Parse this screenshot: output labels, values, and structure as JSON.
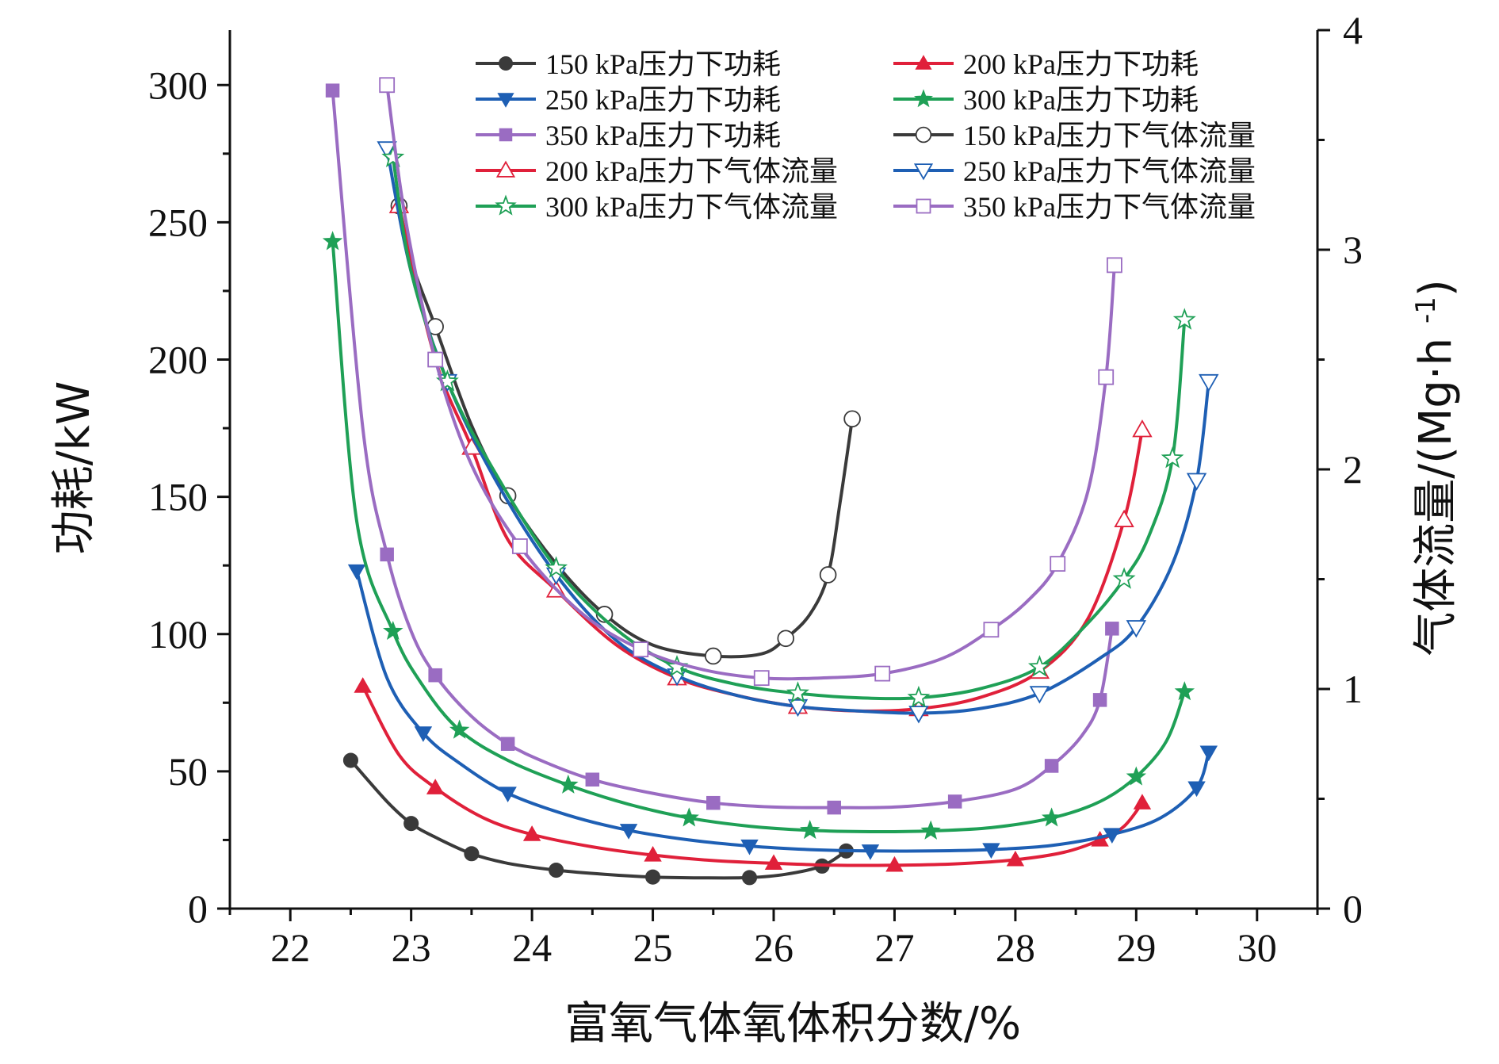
{
  "chart_data": {
    "type": "line",
    "xlabel": "富氧气体氧体积分数/%",
    "ylabel": "功耗/kW",
    "y2label": "气体流量/(Mg·h-1)",
    "xlim": [
      21.5,
      30.5
    ],
    "ylim": [
      0,
      320
    ],
    "y2lim": [
      0,
      4
    ],
    "xticks": [
      22,
      23,
      24,
      25,
      26,
      27,
      28,
      29,
      30
    ],
    "yticks": [
      0,
      50,
      100,
      150,
      200,
      250,
      300
    ],
    "y2ticks": [
      0,
      1,
      2,
      3,
      4
    ],
    "legend_position": "top-right",
    "series": [
      {
        "name": "150 kPa压力下功耗",
        "axis": "left",
        "color": "#3a3a3a",
        "marker": "circle",
        "filled": true,
        "x": [
          22.5,
          22.8,
          23.0,
          23.2,
          23.5,
          23.8,
          24.2,
          24.6,
          25.0,
          25.4,
          25.8,
          26.1,
          26.4,
          26.6
        ],
        "y": [
          54,
          39,
          31,
          26,
          20,
          16.5,
          14,
          12.5,
          11.5,
          11.2,
          11.3,
          12.5,
          15.5,
          21
        ]
      },
      {
        "name": "200 kPa压力下功耗",
        "axis": "left",
        "color": "#e0203a",
        "marker": "triangle-up",
        "filled": true,
        "x": [
          22.6,
          22.9,
          23.2,
          23.6,
          24.0,
          24.5,
          25.0,
          25.5,
          26.0,
          26.5,
          27.0,
          27.5,
          28.0,
          28.4,
          28.7,
          28.9,
          29.05
        ],
        "y": [
          81,
          56,
          44,
          33,
          27,
          22.5,
          19.5,
          17.5,
          16.5,
          15.8,
          15.8,
          16.3,
          17.8,
          20.5,
          25,
          30,
          38.5
        ]
      },
      {
        "name": "250 kPa压力下功耗",
        "axis": "left",
        "color": "#1e5fb4",
        "marker": "triangle-down",
        "filled": true,
        "x": [
          22.55,
          22.8,
          23.1,
          23.4,
          23.8,
          24.3,
          24.8,
          25.3,
          25.8,
          26.3,
          26.8,
          27.3,
          27.8,
          28.3,
          28.8,
          29.2,
          29.5,
          29.6
        ],
        "y": [
          123,
          84,
          64,
          53,
          42,
          34,
          28.5,
          25,
          22.8,
          21.5,
          21,
          21,
          21.5,
          23,
          27,
          33,
          44,
          57
        ]
      },
      {
        "name": "300 kPa压力下功耗",
        "axis": "left",
        "color": "#1fa056",
        "marker": "star",
        "filled": true,
        "x": [
          22.35,
          22.55,
          22.85,
          23.1,
          23.4,
          23.8,
          24.3,
          24.8,
          25.3,
          25.8,
          26.3,
          26.8,
          27.3,
          27.8,
          28.3,
          28.7,
          29.0,
          29.25,
          29.4
        ],
        "y": [
          243,
          141,
          101,
          81,
          65,
          54,
          45,
          38,
          33,
          30,
          28.5,
          28,
          28.3,
          29.5,
          33,
          39,
          48,
          61,
          79
        ]
      },
      {
        "name": "350 kPa压力下功耗",
        "axis": "left",
        "color": "#9a6cc2",
        "marker": "square",
        "filled": true,
        "x": [
          22.35,
          22.6,
          22.8,
          23.0,
          23.2,
          23.5,
          23.8,
          24.1,
          24.5,
          25.0,
          25.5,
          26.0,
          26.5,
          27.0,
          27.5,
          28.0,
          28.3,
          28.55,
          28.7,
          28.8
        ],
        "y": [
          298,
          175,
          129,
          101,
          85,
          70,
          60,
          53.5,
          47,
          42,
          38.5,
          37,
          36.8,
          37,
          39,
          43.5,
          52,
          63,
          76,
          102
        ]
      },
      {
        "name": "150 kPa压力下气体流量",
        "axis": "right",
        "color": "#3a3a3a",
        "marker": "circle",
        "filled": false,
        "x": [
          22.9,
          23.0,
          23.2,
          23.5,
          23.8,
          24.2,
          24.6,
          25.0,
          25.5,
          25.9,
          26.1,
          26.3,
          26.45,
          26.55,
          26.65
        ],
        "y": [
          3.2,
          2.95,
          2.65,
          2.2,
          1.88,
          1.57,
          1.34,
          1.2,
          1.15,
          1.16,
          1.23,
          1.34,
          1.52,
          1.85,
          2.23
        ]
      },
      {
        "name": "200 kPa压力下气体流量",
        "axis": "right",
        "color": "#e0203a",
        "marker": "triangle-up",
        "filled": false,
        "x": [
          22.9,
          23.2,
          23.5,
          23.8,
          24.2,
          24.7,
          25.2,
          25.7,
          26.2,
          26.7,
          27.2,
          27.7,
          28.2,
          28.6,
          28.9,
          29.05
        ],
        "y": [
          3.2,
          2.5,
          2.1,
          1.68,
          1.45,
          1.2,
          1.05,
          0.97,
          0.92,
          0.9,
          0.91,
          0.96,
          1.08,
          1.32,
          1.77,
          2.18
        ]
      },
      {
        "name": "250 kPa压力下气体流量",
        "axis": "right",
        "color": "#1e5fb4",
        "marker": "triangle-down",
        "filled": false,
        "x": [
          22.8,
          23.0,
          23.3,
          23.7,
          24.2,
          24.7,
          25.2,
          25.7,
          26.2,
          26.7,
          27.2,
          27.7,
          28.2,
          28.7,
          29.0,
          29.3,
          29.5,
          29.6
        ],
        "y": [
          3.46,
          2.9,
          2.4,
          1.95,
          1.52,
          1.22,
          1.06,
          0.97,
          0.92,
          0.9,
          0.89,
          0.91,
          0.98,
          1.14,
          1.28,
          1.57,
          1.95,
          2.4
        ]
      },
      {
        "name": "300 kPa压力下气体流量",
        "axis": "right",
        "color": "#1fa056",
        "marker": "star",
        "filled": false,
        "x": [
          22.85,
          23.0,
          23.3,
          23.7,
          24.2,
          24.7,
          25.2,
          25.7,
          26.2,
          26.7,
          27.2,
          27.7,
          28.2,
          28.6,
          28.9,
          29.1,
          29.3,
          29.4
        ],
        "y": [
          3.42,
          2.9,
          2.4,
          1.98,
          1.55,
          1.27,
          1.1,
          1.02,
          0.98,
          0.96,
          0.96,
          1.0,
          1.1,
          1.3,
          1.5,
          1.69,
          2.05,
          2.68
        ]
      },
      {
        "name": "350 kPa压力下气体流量",
        "axis": "right",
        "color": "#9a6cc2",
        "marker": "square",
        "filled": false,
        "x": [
          22.8,
          22.95,
          23.2,
          23.5,
          23.9,
          24.4,
          24.9,
          25.4,
          25.9,
          26.4,
          26.9,
          27.4,
          27.8,
          28.1,
          28.35,
          28.6,
          28.75,
          28.82
        ],
        "y": [
          3.75,
          3.15,
          2.5,
          2.02,
          1.65,
          1.35,
          1.18,
          1.09,
          1.05,
          1.05,
          1.07,
          1.14,
          1.27,
          1.4,
          1.57,
          1.9,
          2.42,
          2.93
        ]
      }
    ]
  }
}
